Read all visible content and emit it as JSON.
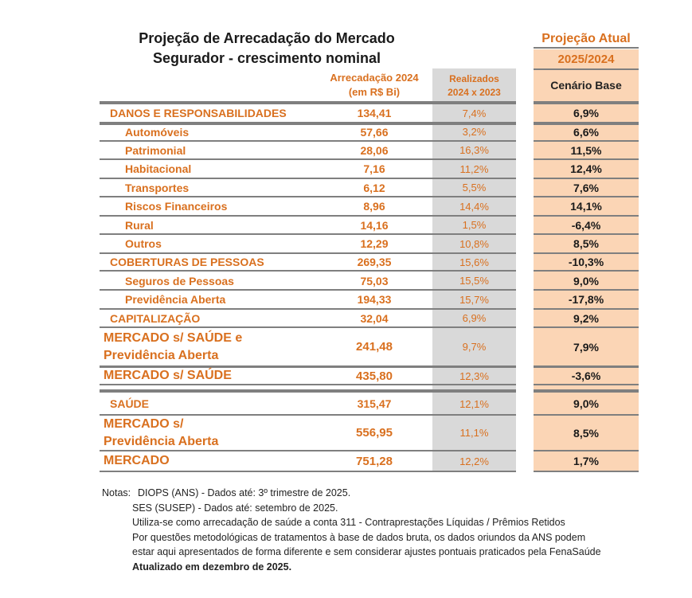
{
  "header": {
    "title": [
      "Projeção de Arrecadação do Mercado",
      "Segurador - crescimento nominal"
    ],
    "columns": {
      "arrecadacao": [
        "Arrecadação 2024",
        "(em R$ Bi)"
      ],
      "realizados": [
        "Realizados",
        "2024 x 2023"
      ],
      "projecao": [
        "Projeção Atual",
        "2025/2024"
      ],
      "cenario": "Cenário Base"
    }
  },
  "table": {
    "rows": [
      [
        "DANOS E RESPONSABILIDADES",
        "134,41",
        "7,4%",
        "6,9%"
      ],
      [
        "Automóveis",
        "57,66",
        "3,2%",
        "6,6%"
      ],
      [
        "Patrimonial",
        "28,06",
        "16,3%",
        "11,5%"
      ],
      [
        "Habitacional",
        "7,16",
        "11,2%",
        "12,4%"
      ],
      [
        "Transportes",
        "6,12",
        "5,5%",
        "7,6%"
      ],
      [
        "Riscos Financeiros",
        "8,96",
        "14,4%",
        "14,1%"
      ],
      [
        "Rural",
        "14,16",
        "1,5%",
        "-6,4%"
      ],
      [
        "Outros",
        "12,29",
        "10,8%",
        "8,5%"
      ],
      [
        "COBERTURAS DE PESSOAS",
        "269,35",
        "15,6%",
        "-10,3%"
      ],
      [
        "Seguros de Pessoas",
        "75,03",
        "15,5%",
        "9,0%"
      ],
      [
        "Previdência Aberta",
        "194,33",
        "15,7%",
        "-17,8%"
      ],
      [
        "CAPITALIZAÇÃO",
        "32,04",
        "6,9%",
        "9,2%"
      ],
      [
        "MERCADO s/ SAÚDE e Previdência Aberta",
        "241,48",
        "9,7%",
        "7,9%"
      ],
      [
        "MERCADO s/ SAÚDE",
        "435,80",
        "12,3%",
        "-3,6%"
      ],
      [
        "SAÚDE",
        "315,47",
        "12,1%",
        "9,0%"
      ],
      [
        "MERCADO s/ Previdência Aberta",
        "556,95",
        "11,1%",
        "8,5%"
      ],
      [
        "MERCADO",
        "751,28",
        "12,2%",
        "1,7%"
      ]
    ]
  },
  "notes": {
    "label": "Notas:",
    "lines": [
      "DIOPS (ANS) - Dados até: 3º trimestre de 2025.",
      "SES (SUSEP) - Dados até: setembro de 2025.",
      "Utiliza-se como arrecadação de saúde a conta 311 - Contraprestações Líquidas / Prêmios Retidos",
      "Por questões metodológicas de tratamentos à base de dados bruta, os dados oriundos da ANS podem",
      "estar aqui apresentados de forma diferente e sem considerar ajustes pontuais praticados pela FenaSaúde",
      "Atualizado em dezembro de 2025."
    ]
  }
}
